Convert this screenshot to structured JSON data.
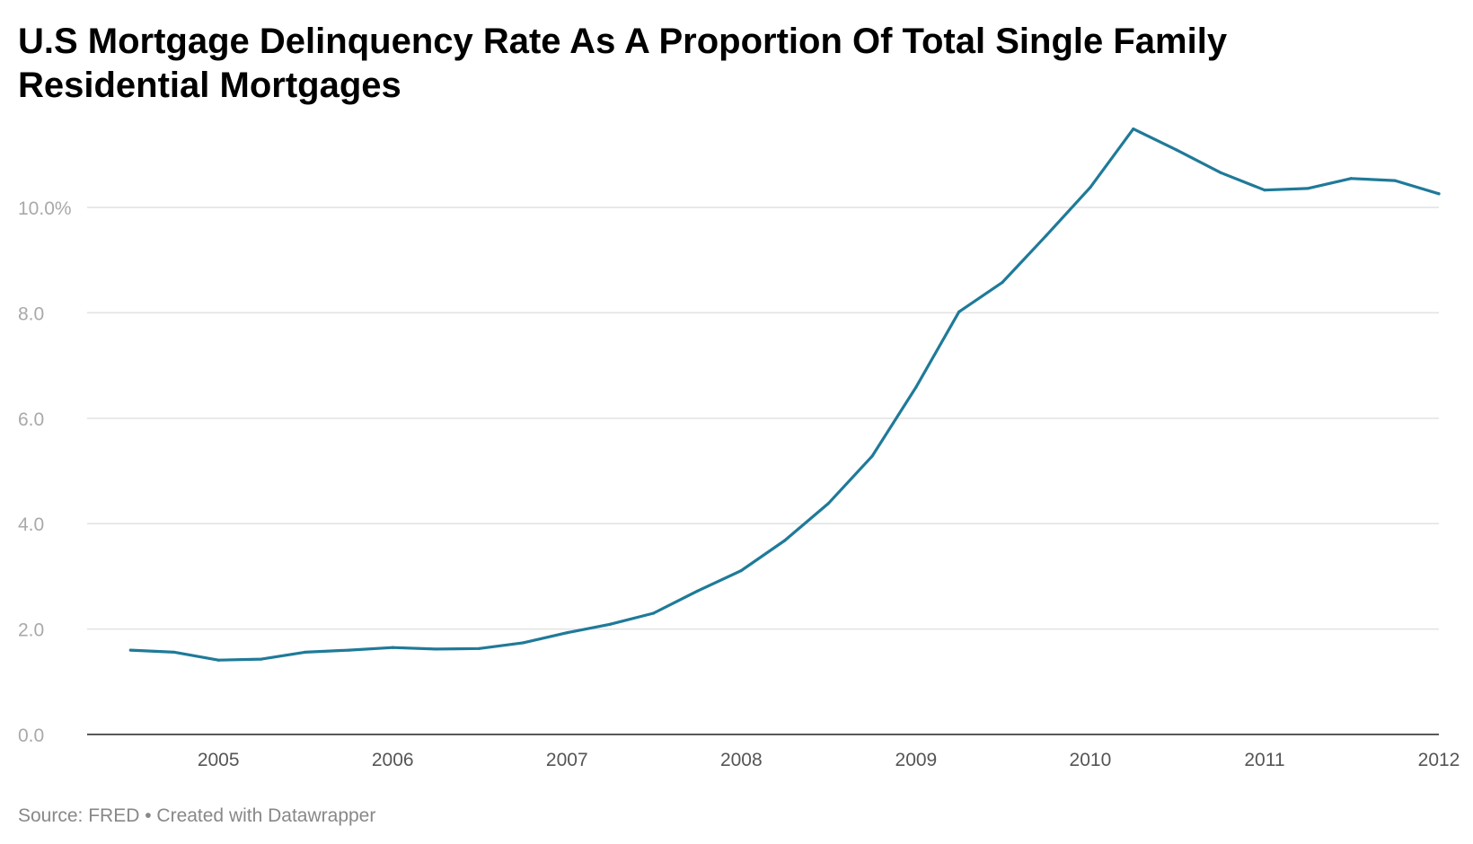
{
  "title": "U.S Mortgage Delinquency Rate As A Proportion Of Total Single Family Residential Mortgages",
  "footer": {
    "source": "Source: FRED",
    "separator": " • ",
    "credit": "Created with Datawrapper"
  },
  "colors": {
    "line": "#1f7a99",
    "grid": "#e2e2e2",
    "axis": "#222222"
  },
  "chart_data": {
    "type": "line",
    "title": "U.S Mortgage Delinquency Rate As A Proportion Of Total Single Family Residential Mortgages",
    "xlabel": "",
    "ylabel": "",
    "xlim": [
      "2004-04-01",
      "2012-01-01"
    ],
    "ylim": [
      0,
      11.5
    ],
    "grid": true,
    "y_ticks": [
      {
        "value": 0,
        "label": "0.0"
      },
      {
        "value": 2,
        "label": "2.0"
      },
      {
        "value": 4,
        "label": "4.0"
      },
      {
        "value": 6,
        "label": "6.0"
      },
      {
        "value": 8,
        "label": "8.0"
      },
      {
        "value": 10,
        "label": "10.0%"
      }
    ],
    "x_ticks": [
      {
        "value": "2005-01-01",
        "label": "2005"
      },
      {
        "value": "2006-01-01",
        "label": "2006"
      },
      {
        "value": "2007-01-01",
        "label": "2007"
      },
      {
        "value": "2008-01-01",
        "label": "2008"
      },
      {
        "value": "2009-01-01",
        "label": "2009"
      },
      {
        "value": "2010-01-01",
        "label": "2010"
      },
      {
        "value": "2011-01-01",
        "label": "2011"
      },
      {
        "value": "2012-01-01",
        "label": "2012"
      }
    ],
    "series": [
      {
        "values": [
          {
            "x": "2004-07-01",
            "y": 1.6
          },
          {
            "x": "2004-10-01",
            "y": 1.56
          },
          {
            "x": "2005-01-01",
            "y": 1.41
          },
          {
            "x": "2005-04-01",
            "y": 1.43
          },
          {
            "x": "2005-07-01",
            "y": 1.56
          },
          {
            "x": "2005-10-01",
            "y": 1.6
          },
          {
            "x": "2006-01-01",
            "y": 1.65
          },
          {
            "x": "2006-04-01",
            "y": 1.62
          },
          {
            "x": "2006-07-01",
            "y": 1.63
          },
          {
            "x": "2006-10-01",
            "y": 1.74
          },
          {
            "x": "2007-01-01",
            "y": 1.93
          },
          {
            "x": "2007-04-01",
            "y": 2.09
          },
          {
            "x": "2007-07-01",
            "y": 2.3
          },
          {
            "x": "2007-10-01",
            "y": 2.72
          },
          {
            "x": "2008-01-01",
            "y": 3.11
          },
          {
            "x": "2008-04-01",
            "y": 3.68
          },
          {
            "x": "2008-07-01",
            "y": 4.38
          },
          {
            "x": "2008-10-01",
            "y": 5.28
          },
          {
            "x": "2009-01-01",
            "y": 6.59
          },
          {
            "x": "2009-04-01",
            "y": 8.02
          },
          {
            "x": "2009-07-01",
            "y": 8.58
          },
          {
            "x": "2009-10-01",
            "y": 9.47
          },
          {
            "x": "2010-01-01",
            "y": 10.38
          },
          {
            "x": "2010-04-01",
            "y": 11.49
          },
          {
            "x": "2010-07-01",
            "y": 11.09
          },
          {
            "x": "2010-10-01",
            "y": 10.66
          },
          {
            "x": "2011-01-01",
            "y": 10.33
          },
          {
            "x": "2011-04-01",
            "y": 10.36
          },
          {
            "x": "2011-07-01",
            "y": 10.55
          },
          {
            "x": "2011-10-01",
            "y": 10.51
          },
          {
            "x": "2012-01-01",
            "y": 10.26
          }
        ]
      }
    ]
  }
}
